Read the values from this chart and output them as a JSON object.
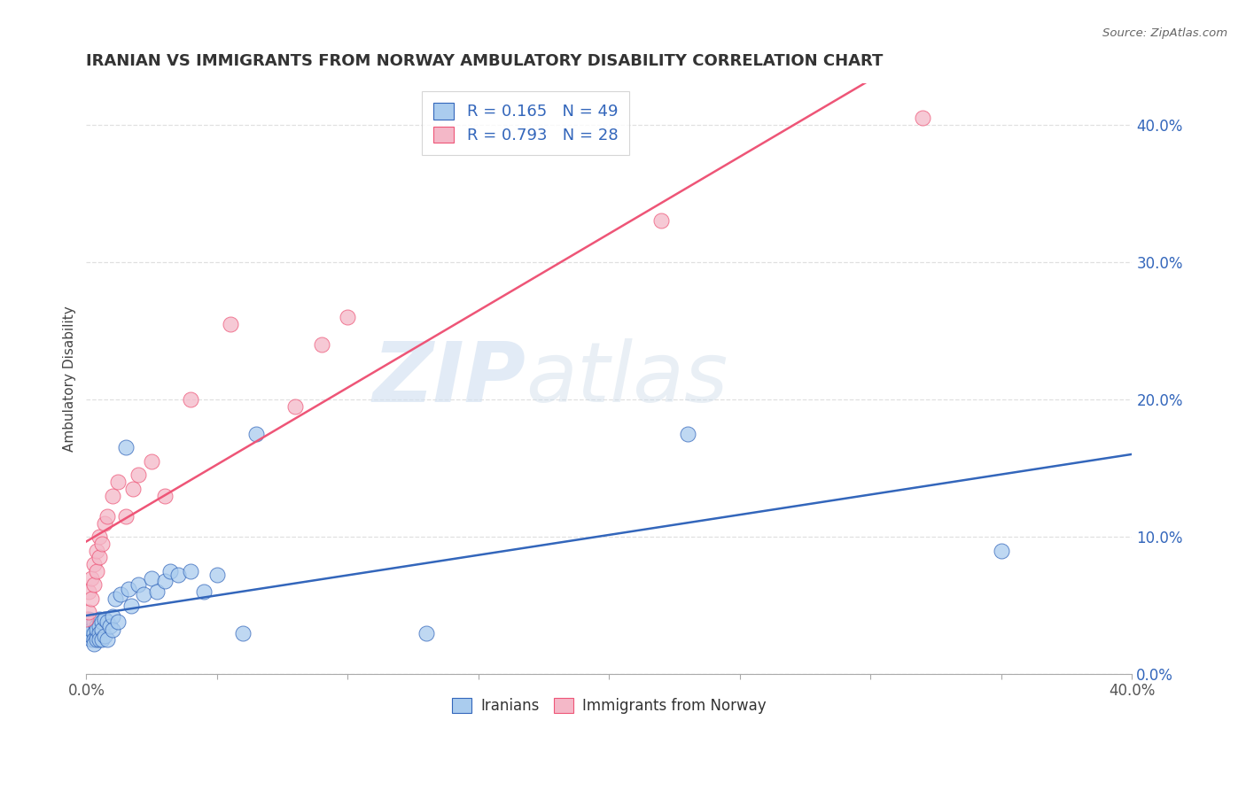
{
  "title": "IRANIAN VS IMMIGRANTS FROM NORWAY AMBULATORY DISABILITY CORRELATION CHART",
  "source": "Source: ZipAtlas.com",
  "ylabel": "Ambulatory Disability",
  "legend_iranians": "Iranians",
  "legend_norway": "Immigrants from Norway",
  "r_iranians": 0.165,
  "n_iranians": 49,
  "r_norway": 0.793,
  "n_norway": 28,
  "color_iranians": "#aaccee",
  "color_norway": "#f4b8c8",
  "line_color_iranians": "#3366bb",
  "line_color_norway": "#ee5577",
  "iranians_x": [
    0.0,
    0.001,
    0.001,
    0.002,
    0.002,
    0.002,
    0.003,
    0.003,
    0.003,
    0.003,
    0.004,
    0.004,
    0.004,
    0.004,
    0.005,
    0.005,
    0.005,
    0.005,
    0.006,
    0.006,
    0.006,
    0.007,
    0.007,
    0.008,
    0.008,
    0.009,
    0.01,
    0.01,
    0.011,
    0.012,
    0.013,
    0.015,
    0.016,
    0.017,
    0.02,
    0.022,
    0.025,
    0.027,
    0.03,
    0.032,
    0.035,
    0.04,
    0.045,
    0.05,
    0.06,
    0.065,
    0.13,
    0.23,
    0.35
  ],
  "iranians_y": [
    0.03,
    0.035,
    0.04,
    0.025,
    0.028,
    0.032,
    0.03,
    0.025,
    0.038,
    0.022,
    0.035,
    0.028,
    0.032,
    0.025,
    0.04,
    0.035,
    0.03,
    0.025,
    0.038,
    0.032,
    0.025,
    0.04,
    0.028,
    0.038,
    0.025,
    0.035,
    0.042,
    0.032,
    0.055,
    0.038,
    0.058,
    0.165,
    0.062,
    0.05,
    0.065,
    0.058,
    0.07,
    0.06,
    0.068,
    0.075,
    0.072,
    0.075,
    0.06,
    0.072,
    0.03,
    0.175,
    0.03,
    0.175,
    0.09
  ],
  "norway_x": [
    0.0,
    0.001,
    0.001,
    0.002,
    0.002,
    0.003,
    0.003,
    0.004,
    0.004,
    0.005,
    0.005,
    0.006,
    0.007,
    0.008,
    0.01,
    0.012,
    0.015,
    0.018,
    0.02,
    0.025,
    0.03,
    0.04,
    0.055,
    0.08,
    0.09,
    0.1,
    0.22,
    0.32
  ],
  "norway_y": [
    0.04,
    0.045,
    0.06,
    0.055,
    0.07,
    0.065,
    0.08,
    0.075,
    0.09,
    0.085,
    0.1,
    0.095,
    0.11,
    0.115,
    0.13,
    0.14,
    0.115,
    0.135,
    0.145,
    0.155,
    0.13,
    0.2,
    0.255,
    0.195,
    0.24,
    0.26,
    0.33,
    0.405
  ],
  "xmin": 0.0,
  "xmax": 0.4,
  "ymin": 0.0,
  "ymax": 0.43,
  "watermark_zip": "ZIP",
  "watermark_atlas": "atlas",
  "background_color": "#ffffff",
  "grid_color": "#dddddd",
  "ytick_color": "#3366bb",
  "title_color": "#333333",
  "source_color": "#666666"
}
